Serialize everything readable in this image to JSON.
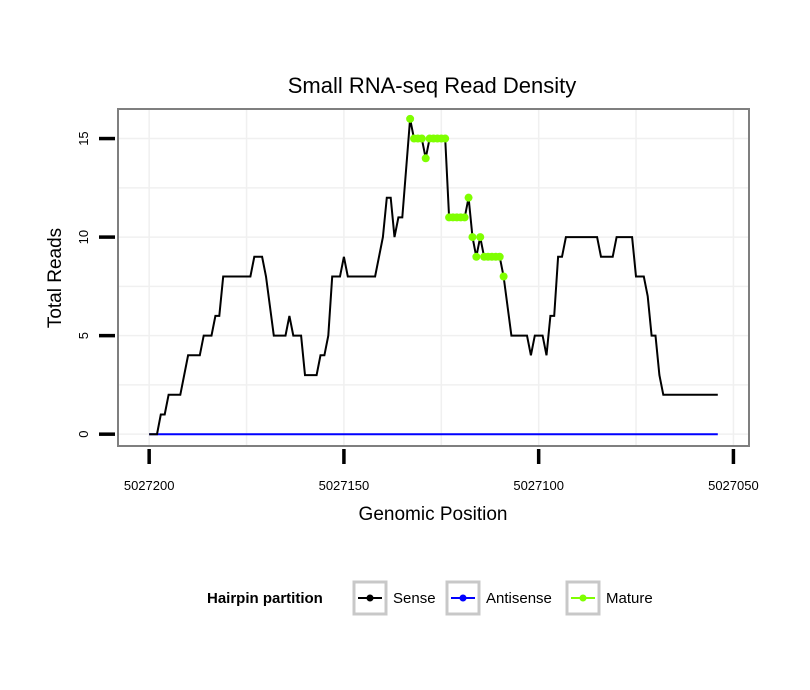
{
  "chart_data": {
    "type": "line",
    "title": "Small RNA-seq Read Density",
    "xlabel": "Genomic Position",
    "ylabel": "Total Reads",
    "xlim": [
      5027208,
      5027046
    ],
    "ylim": [
      -0.6,
      16.5
    ],
    "x_reversed": true,
    "x_ticks": [
      5027200,
      5027150,
      5027100,
      5027050
    ],
    "x_tick_labels": [
      "5027200",
      "5027150",
      "5027100",
      "5027050"
    ],
    "y_ticks": [
      0,
      5,
      10,
      15
    ],
    "y_tick_labels": [
      "0",
      "5",
      "10",
      "15"
    ],
    "grid": true,
    "legend": {
      "title": "Hairpin partition",
      "position": "bottom",
      "entries": [
        "Sense",
        "Antisense",
        "Mature"
      ]
    },
    "series": [
      {
        "name": "Sense",
        "color": "#000000",
        "marker": false,
        "points": [
          [
            5027200,
            0
          ],
          [
            5027198,
            0
          ],
          [
            5027197,
            1
          ],
          [
            5027196,
            1
          ],
          [
            5027195,
            2
          ],
          [
            5027194,
            2
          ],
          [
            5027192,
            2
          ],
          [
            5027190,
            4
          ],
          [
            5027187,
            4
          ],
          [
            5027186,
            5
          ],
          [
            5027184,
            5
          ],
          [
            5027183,
            6
          ],
          [
            5027182,
            6
          ],
          [
            5027181,
            8
          ],
          [
            5027178,
            8
          ],
          [
            5027174,
            8
          ],
          [
            5027173,
            9
          ],
          [
            5027171,
            9
          ],
          [
            5027170,
            8
          ],
          [
            5027168,
            5
          ],
          [
            5027165,
            5
          ],
          [
            5027164,
            6
          ],
          [
            5027163,
            5
          ],
          [
            5027161,
            5
          ],
          [
            5027160,
            3
          ],
          [
            5027157,
            3
          ],
          [
            5027156,
            4
          ],
          [
            5027155,
            4
          ],
          [
            5027154,
            5
          ],
          [
            5027153,
            8
          ],
          [
            5027151,
            8
          ],
          [
            5027150,
            9
          ],
          [
            5027149,
            8
          ],
          [
            5027146,
            8
          ],
          [
            5027142,
            8
          ],
          [
            5027140,
            10
          ],
          [
            5027139,
            12
          ],
          [
            5027138,
            12
          ],
          [
            5027137,
            10
          ],
          [
            5027136,
            11
          ],
          [
            5027135,
            11
          ],
          [
            5027133,
            16
          ],
          [
            5027132,
            15
          ],
          [
            5027130,
            15
          ],
          [
            5027129,
            14
          ],
          [
            5027128,
            15
          ],
          [
            5027124,
            15
          ],
          [
            5027123,
            11
          ],
          [
            5027119,
            11
          ],
          [
            5027118,
            12
          ],
          [
            5027117,
            10
          ],
          [
            5027116,
            9
          ],
          [
            5027115,
            10
          ],
          [
            5027114,
            9
          ],
          [
            5027110,
            9
          ],
          [
            5027109,
            8
          ],
          [
            5027107,
            5
          ],
          [
            5027103,
            5
          ],
          [
            5027102,
            4
          ],
          [
            5027101,
            5
          ],
          [
            5027099,
            5
          ],
          [
            5027098,
            4
          ],
          [
            5027097,
            6
          ],
          [
            5027096,
            6
          ],
          [
            5027095,
            9
          ],
          [
            5027094,
            9
          ],
          [
            5027093,
            10
          ],
          [
            5027085,
            10
          ],
          [
            5027084,
            9
          ],
          [
            5027081,
            9
          ],
          [
            5027080,
            10
          ],
          [
            5027076,
            10
          ],
          [
            5027075,
            8
          ],
          [
            5027073,
            8
          ],
          [
            5027072,
            7
          ],
          [
            5027071,
            5
          ],
          [
            5027070,
            5
          ],
          [
            5027069,
            3
          ],
          [
            5027068,
            2
          ],
          [
            5027054,
            2
          ]
        ]
      },
      {
        "name": "Antisense",
        "color": "#0000ff",
        "marker": false,
        "points": [
          [
            5027200,
            0
          ],
          [
            5027054,
            0
          ]
        ]
      },
      {
        "name": "Mature",
        "color": "#7fff00",
        "marker": true,
        "points": [
          [
            5027133,
            16
          ],
          [
            5027132,
            15
          ],
          [
            5027131,
            15
          ],
          [
            5027130,
            15
          ],
          [
            5027129,
            14
          ],
          [
            5027128,
            15
          ],
          [
            5027127,
            15
          ],
          [
            5027126,
            15
          ],
          [
            5027125,
            15
          ],
          [
            5027124,
            15
          ],
          [
            5027123,
            11
          ],
          [
            5027122,
            11
          ],
          [
            5027121,
            11
          ],
          [
            5027120,
            11
          ],
          [
            5027119,
            11
          ],
          [
            5027118,
            12
          ],
          [
            5027117,
            10
          ],
          [
            5027116,
            9
          ],
          [
            5027115,
            10
          ],
          [
            5027114,
            9
          ],
          [
            5027113,
            9
          ],
          [
            5027112,
            9
          ],
          [
            5027111,
            9
          ],
          [
            5027110,
            9
          ],
          [
            5027109,
            8
          ]
        ]
      }
    ]
  }
}
